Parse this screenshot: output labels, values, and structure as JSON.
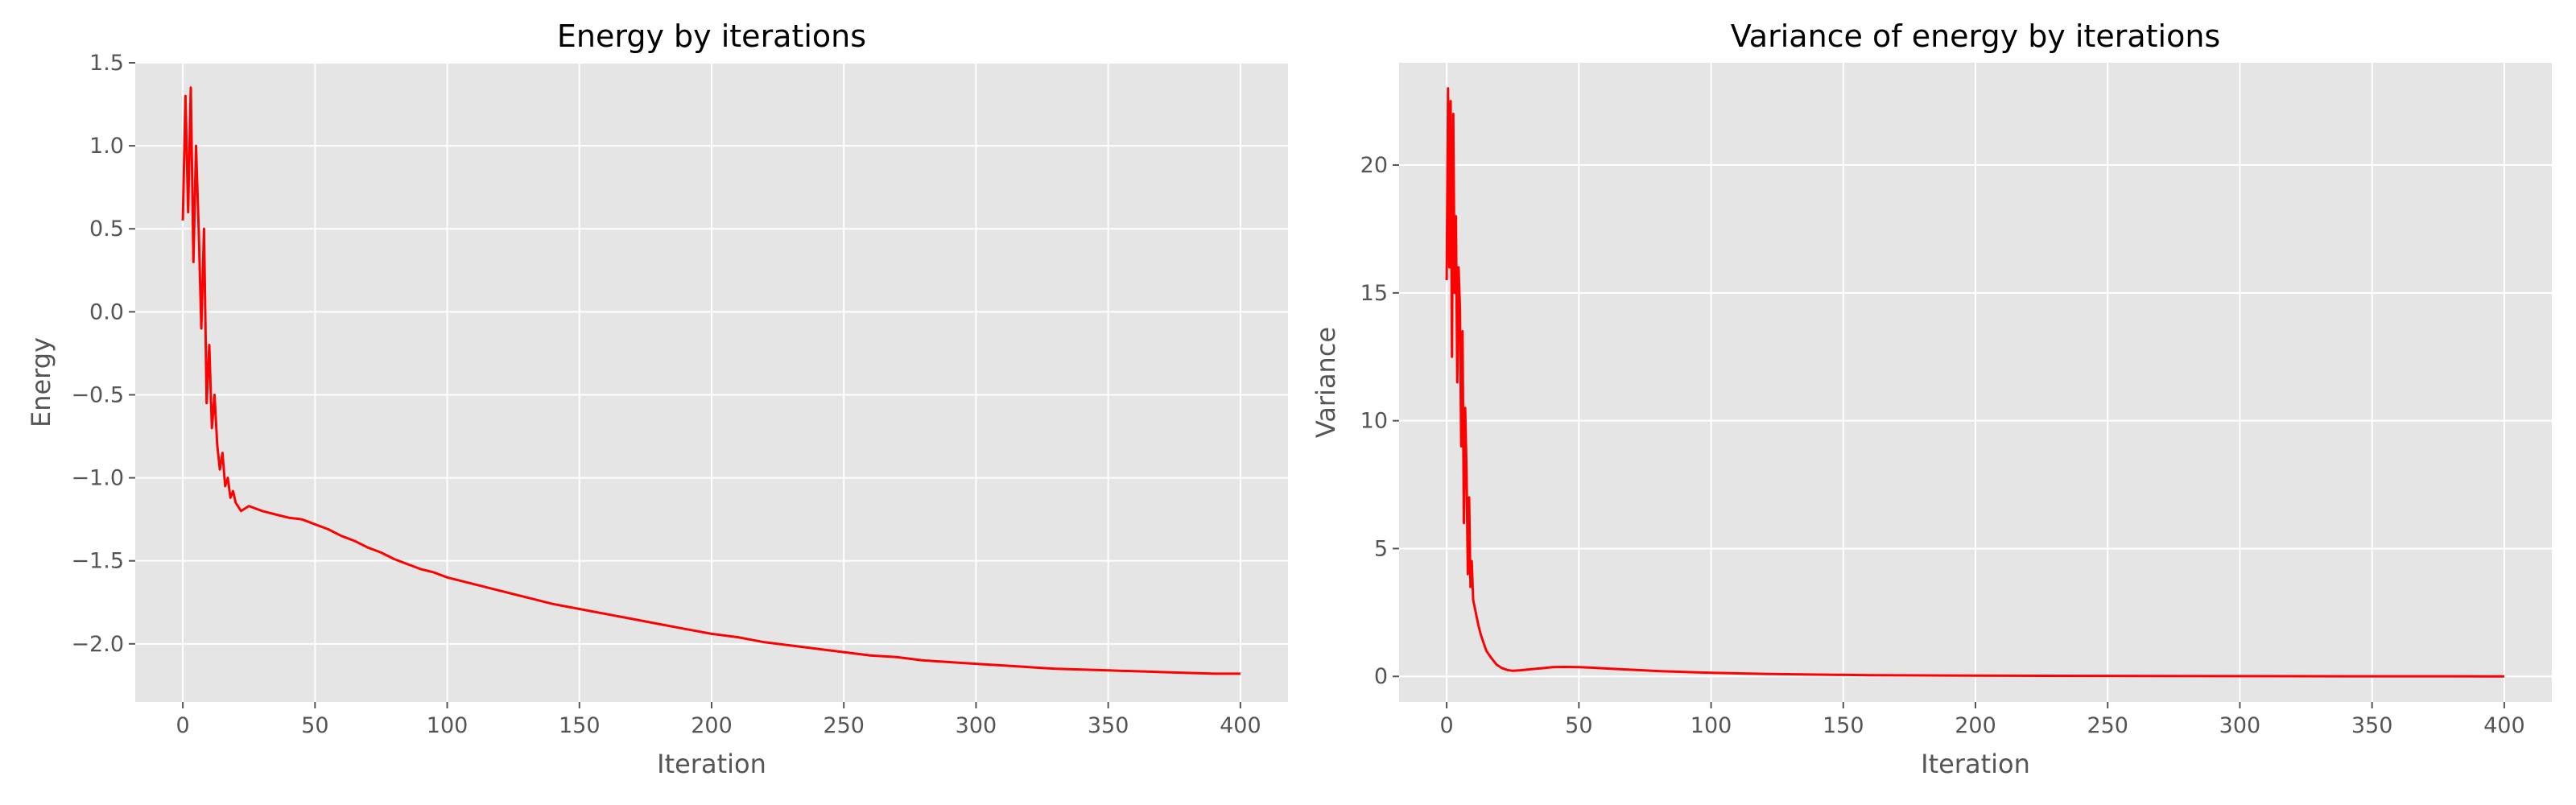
{
  "colors": {
    "background": "#ffffff",
    "plot_background": "#e5e5e5",
    "grid": "#ffffff",
    "tick_text": "#555555",
    "series": "#ff0000"
  },
  "chart_data": [
    {
      "type": "line",
      "title": "Energy by iterations",
      "xlabel": "Iteration",
      "ylabel": "Energy",
      "xlim": [
        -18,
        418
      ],
      "ylim": [
        -2.35,
        1.5
      ],
      "xticks": [
        0,
        50,
        100,
        150,
        200,
        250,
        300,
        350,
        400
      ],
      "xtick_labels": [
        "0",
        "50",
        "100",
        "150",
        "200",
        "250",
        "300",
        "350",
        "400"
      ],
      "yticks": [
        -2.0,
        -1.5,
        -1.0,
        -0.5,
        0.0,
        0.5,
        1.0,
        1.5
      ],
      "ytick_labels": [
        "−2.0",
        "−1.5",
        "−1.0",
        "−0.5",
        "0.0",
        "0.5",
        "1.0",
        "1.5"
      ],
      "grid": true,
      "series": [
        {
          "color": "#ff0000",
          "x": [
            0,
            1,
            2,
            3,
            4,
            5,
            6,
            7,
            8,
            9,
            10,
            11,
            12,
            13,
            14,
            15,
            16,
            17,
            18,
            19,
            20,
            22,
            25,
            30,
            35,
            40,
            45,
            50,
            55,
            60,
            65,
            70,
            75,
            80,
            85,
            90,
            95,
            100,
            110,
            120,
            130,
            140,
            150,
            160,
            170,
            180,
            190,
            200,
            210,
            220,
            230,
            240,
            250,
            260,
            270,
            280,
            290,
            300,
            310,
            320,
            330,
            340,
            350,
            360,
            370,
            380,
            390,
            400
          ],
          "y": [
            0.55,
            1.3,
            0.6,
            1.35,
            0.3,
            1.0,
            0.5,
            -0.1,
            0.5,
            -0.55,
            -0.2,
            -0.7,
            -0.5,
            -0.8,
            -0.95,
            -0.85,
            -1.05,
            -1.0,
            -1.12,
            -1.08,
            -1.15,
            -1.2,
            -1.17,
            -1.2,
            -1.22,
            -1.24,
            -1.25,
            -1.28,
            -1.31,
            -1.35,
            -1.38,
            -1.42,
            -1.45,
            -1.49,
            -1.52,
            -1.55,
            -1.57,
            -1.6,
            -1.64,
            -1.68,
            -1.72,
            -1.76,
            -1.79,
            -1.82,
            -1.85,
            -1.88,
            -1.91,
            -1.94,
            -1.96,
            -1.99,
            -2.01,
            -2.03,
            -2.05,
            -2.07,
            -2.08,
            -2.1,
            -2.11,
            -2.12,
            -2.13,
            -2.14,
            -2.15,
            -2.155,
            -2.16,
            -2.165,
            -2.17,
            -2.175,
            -2.18,
            -2.18
          ]
        }
      ]
    },
    {
      "type": "line",
      "title": "Variance of energy by iterations",
      "xlabel": "Iteration",
      "ylabel": "Variance",
      "xlim": [
        -18,
        418
      ],
      "ylim": [
        -1.0,
        24.0
      ],
      "xticks": [
        0,
        50,
        100,
        150,
        200,
        250,
        300,
        350,
        400
      ],
      "xtick_labels": [
        "0",
        "50",
        "100",
        "150",
        "200",
        "250",
        "300",
        "350",
        "400"
      ],
      "yticks": [
        0,
        5,
        10,
        15,
        20
      ],
      "ytick_labels": [
        "0",
        "5",
        "10",
        "15",
        "20"
      ],
      "grid": true,
      "series": [
        {
          "color": "#ff0000",
          "x": [
            0,
            0.5,
            1,
            1.5,
            2,
            2.5,
            3,
            3.5,
            4,
            4.5,
            5,
            5.5,
            6,
            6.5,
            7,
            7.5,
            8,
            8.5,
            9,
            9.5,
            10,
            11,
            12,
            13,
            14,
            15,
            17,
            19,
            21,
            23,
            25,
            28,
            32,
            36,
            40,
            45,
            50,
            55,
            60,
            70,
            80,
            90,
            100,
            120,
            140,
            160,
            180,
            200,
            250,
            300,
            350,
            400
          ],
          "y": [
            15.5,
            23.0,
            16.0,
            22.5,
            12.5,
            22.0,
            15.0,
            18.0,
            11.5,
            16.0,
            14.5,
            9.0,
            13.5,
            6.0,
            10.5,
            8.0,
            4.0,
            7.0,
            3.5,
            4.5,
            3.0,
            2.5,
            2.0,
            1.6,
            1.3,
            1.0,
            0.7,
            0.45,
            0.32,
            0.25,
            0.22,
            0.24,
            0.28,
            0.32,
            0.36,
            0.37,
            0.36,
            0.34,
            0.31,
            0.26,
            0.21,
            0.17,
            0.14,
            0.1,
            0.07,
            0.05,
            0.04,
            0.03,
            0.02,
            0.01,
            0.005,
            0.0
          ]
        }
      ]
    }
  ]
}
